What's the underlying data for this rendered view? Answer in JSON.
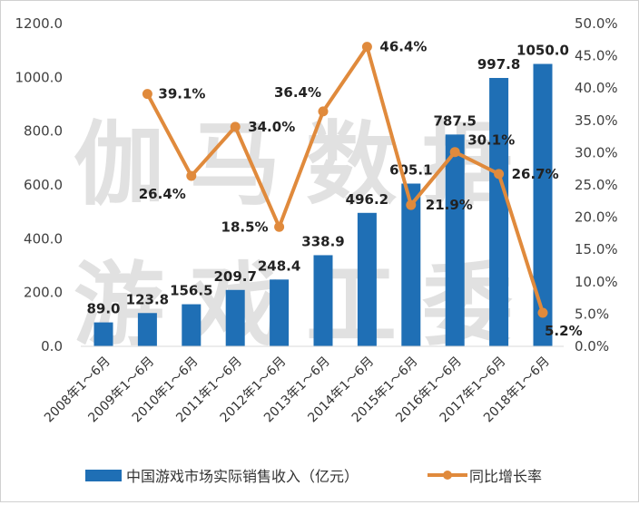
{
  "watermark": [
    "伽马数据",
    "游戏工委"
  ],
  "chart_data": {
    "type": "bar+line",
    "categories": [
      "2008年1～6月",
      "2009年1～6月",
      "2010年1～6月",
      "2011年1～6月",
      "2012年1～6月",
      "2013年1～6月",
      "2014年1～6月",
      "2015年1～6月",
      "2016年1～6月",
      "2017年1～6月",
      "2018年1～6月"
    ],
    "series": [
      {
        "name": "中国游戏市场实际销售收入（亿元）",
        "type": "bar",
        "axis": "left",
        "color": "#1f6fb5",
        "values": [
          89.0,
          123.8,
          156.5,
          209.7,
          248.4,
          338.9,
          496.2,
          605.1,
          787.5,
          997.8,
          1050.0
        ],
        "labels": [
          "89.0",
          "123.8",
          "156.5",
          "209.7",
          "248.4",
          "338.9",
          "496.2",
          "605.1",
          "787.5",
          "997.8",
          "1050.0"
        ]
      },
      {
        "name": "同比增长率",
        "type": "line",
        "axis": "right",
        "color": "#e08a3c",
        "values": [
          null,
          39.1,
          26.4,
          34.0,
          18.5,
          36.4,
          46.4,
          21.9,
          30.1,
          26.7,
          5.2
        ],
        "labels": [
          "",
          "39.1%",
          "26.4%",
          "34.0%",
          "18.5%",
          "36.4%",
          "46.4%",
          "21.9%",
          "30.1%",
          "26.7%",
          "5.2%"
        ]
      }
    ],
    "y_left": {
      "range": [
        0,
        1200
      ],
      "ticks": [
        "0.0",
        "200.0",
        "400.0",
        "600.0",
        "800.0",
        "1000.0",
        "1200.0"
      ]
    },
    "y_right": {
      "range": [
        0,
        50
      ],
      "ticks": [
        "0.0%",
        "5.0%",
        "10.0%",
        "15.0%",
        "20.0%",
        "25.0%",
        "30.0%",
        "35.0%",
        "40.0%",
        "45.0%",
        "50.0%"
      ]
    },
    "grid": false,
    "legend": "bottom"
  }
}
